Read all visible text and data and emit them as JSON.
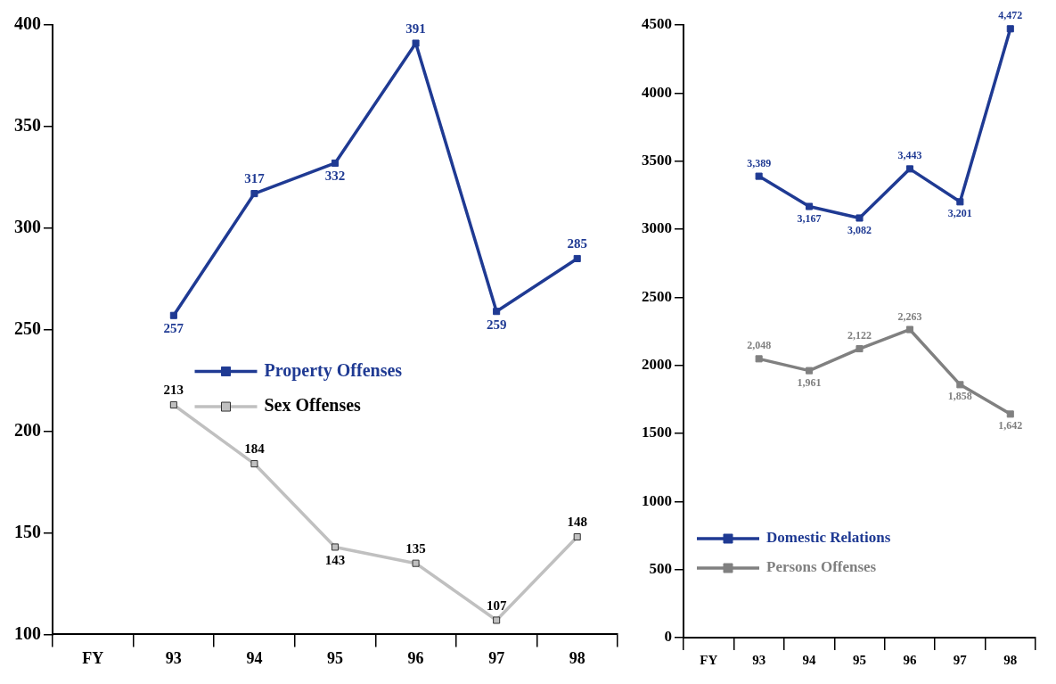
{
  "chart_data": [
    {
      "type": "line",
      "categories": [
        "FY",
        "93",
        "94",
        "95",
        "96",
        "97",
        "98"
      ],
      "ylim": [
        100,
        400
      ],
      "yticks": [
        100,
        150,
        200,
        250,
        300,
        350,
        400
      ],
      "grid": false,
      "legend": "center",
      "marker": "square",
      "data_labels": true,
      "series": [
        {
          "name": "Property Offenses",
          "color": "#1f3a93",
          "values": [
            null,
            257,
            317,
            332,
            391,
            259,
            285
          ]
        },
        {
          "name": "Sex Offenses",
          "color": "#c0c0c0",
          "values": [
            null,
            213,
            184,
            143,
            135,
            107,
            148
          ]
        }
      ]
    },
    {
      "type": "line",
      "categories": [
        "FY",
        "93",
        "94",
        "95",
        "96",
        "97",
        "98"
      ],
      "ylim": [
        0,
        4500
      ],
      "yticks": [
        0,
        500,
        1000,
        1500,
        2000,
        2500,
        3000,
        3500,
        4000,
        4500
      ],
      "grid": false,
      "legend": "bottom left",
      "marker": "square",
      "series": [
        {
          "name": "Domestic Relations",
          "color": "#1f3a93",
          "values": [
            null,
            3389,
            3167,
            3082,
            3443,
            3201,
            4472
          ],
          "value_labels": [
            null,
            "3,389",
            "3,167",
            "3,082",
            "3,443",
            "3,201",
            "4,472"
          ]
        },
        {
          "name": "Persons Offenses",
          "color": "#808080",
          "values": [
            null,
            2048,
            1961,
            2122,
            2263,
            1858,
            1642
          ],
          "value_labels": [
            null,
            "2,048",
            "1,961",
            "2,122",
            "2,263",
            "1,858",
            "1,642"
          ]
        }
      ]
    }
  ]
}
